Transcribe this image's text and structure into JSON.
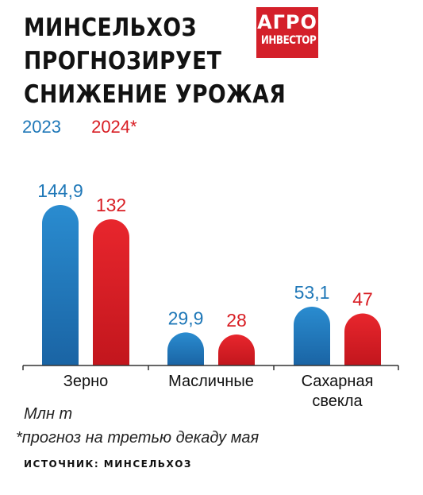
{
  "headline": [
    "МИНСЕЛЬХОЗ",
    "ПРОГНОЗИРУЕТ",
    "СНИЖЕНИЕ УРОЖАЯ"
  ],
  "logo": {
    "line1": "АГРО",
    "line2": "ИНВЕСТОР"
  },
  "chart_data": {
    "type": "bar",
    "title": "МИНСЕЛЬХОЗ ПРОГНОЗИРУЕТ СНИЖЕНИЕ УРОЖАЯ",
    "categories": [
      "Зерно",
      "Масличные",
      "Сахарная свекла"
    ],
    "category_lines": [
      [
        "Зерно"
      ],
      [
        "Масличные"
      ],
      [
        "Сахарная",
        "свекла"
      ]
    ],
    "series": [
      {
        "name": "2023",
        "values": [
          144.9,
          29.9,
          53.1
        ],
        "labels": [
          "144,9",
          "29,9",
          "53,1"
        ],
        "color": "#1f78b8"
      },
      {
        "name": "2024*",
        "values": [
          132,
          28,
          47
        ],
        "labels": [
          "132",
          "28",
          "47"
        ],
        "color": "#d81d23"
      }
    ],
    "ylabel": "Млн т",
    "ylim": [
      0,
      160
    ],
    "grid": false,
    "legend": "top-left"
  },
  "unit": "Млн т",
  "note": "*прогноз на третью декаду мая",
  "source": "ИСТОЧНИК: МИНСЕЛЬХОЗ"
}
